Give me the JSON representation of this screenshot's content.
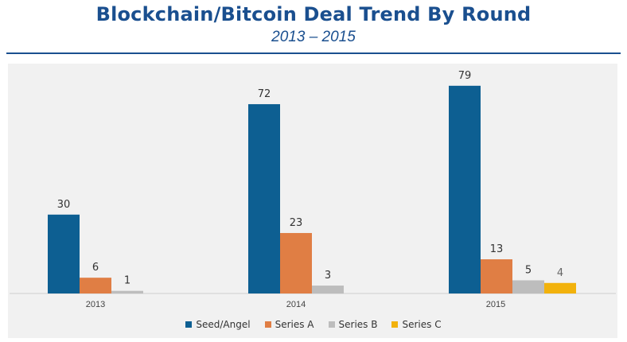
{
  "header": {
    "title": "Blockchain/Bitcoin  Deal Trend By Round",
    "subtitle": "2013 – 2015"
  },
  "colors": {
    "title": "#1a4f8f",
    "series": [
      "#0d5f92",
      "#e07e44",
      "#bdbdbd",
      "#f2b20c"
    ]
  },
  "chart_data": {
    "type": "bar",
    "title": "Blockchain/Bitcoin  Deal Trend By Round",
    "subtitle": "2013 – 2015",
    "xlabel": "",
    "ylabel": "",
    "categories": [
      "2013",
      "2014",
      "2015"
    ],
    "series": [
      {
        "name": "Seed/Angel",
        "values": [
          30,
          72,
          79
        ]
      },
      {
        "name": "Series A",
        "values": [
          6,
          23,
          13
        ]
      },
      {
        "name": "Series B",
        "values": [
          1,
          3,
          5
        ]
      },
      {
        "name": "Series C",
        "values": [
          null,
          null,
          4
        ]
      }
    ],
    "ylim": [
      0,
      85
    ],
    "grid": false,
    "legend": "bottom",
    "data_labels": true
  }
}
